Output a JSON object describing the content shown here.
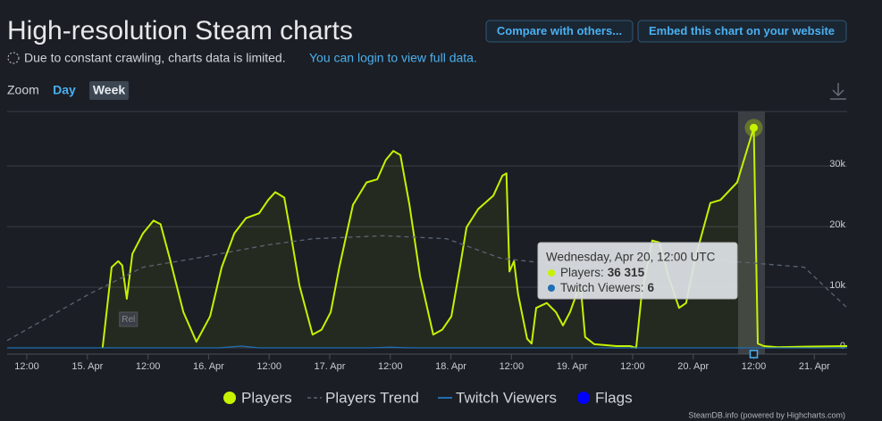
{
  "header": {
    "title": "High-resolution Steam charts",
    "note": "Due to constant crawling, charts data is limited.",
    "login_link": "You can login to view full data.",
    "buttons": [
      "Compare with others...",
      "Embed this chart on your website"
    ],
    "zoom": {
      "label": "Zoom",
      "options": [
        "Day",
        "Week"
      ],
      "active": "Week"
    }
  },
  "chart_data": {
    "type": "line",
    "xlim": [
      8.1,
      174.5
    ],
    "xticks": [
      {
        "value": 12,
        "label": "12:00"
      },
      {
        "value": 24,
        "label": "15. Apr"
      },
      {
        "value": 36,
        "label": "12:00"
      },
      {
        "value": 48,
        "label": "16. Apr"
      },
      {
        "value": 60,
        "label": "12:00"
      },
      {
        "value": 72,
        "label": "17. Apr"
      },
      {
        "value": 84,
        "label": "12:00"
      },
      {
        "value": 96,
        "label": "18. Apr"
      },
      {
        "value": 108,
        "label": "12:00"
      },
      {
        "value": 120,
        "label": "19. Apr"
      },
      {
        "value": 132,
        "label": "12:00"
      },
      {
        "value": 144,
        "label": "20. Apr"
      },
      {
        "value": 156,
        "label": "12:00"
      },
      {
        "value": 168,
        "label": "21. Apr"
      }
    ],
    "ylim": [
      0,
      39000
    ],
    "yticks": [
      0,
      {
        "value": 10000,
        "label": "10k"
      },
      {
        "value": 20000,
        "label": "20k"
      },
      {
        "value": 30000,
        "label": "30k"
      }
    ],
    "grid": true,
    "series": [
      {
        "name": "Players",
        "color": "#c6f200",
        "style": "solid",
        "x": [
          27.0,
          28.8,
          30.1,
          30.9,
          31.8,
          32.9,
          35.0,
          37.1,
          38.5,
          40.3,
          43.0,
          45.6,
          48.3,
          50.6,
          53.1,
          55.4,
          58.0,
          59.8,
          61.2,
          63.0,
          64.2,
          66.0,
          68.6,
          70.4,
          72.2,
          73.9,
          76.6,
          79.3,
          81.4,
          83.1,
          84.6,
          86.0,
          87.8,
          89.9,
          92.5,
          94.3,
          96.1,
          97.8,
          99.1,
          101.4,
          104.4,
          106.2,
          107.0,
          107.6,
          108.5,
          109.3,
          111.1,
          112.0,
          112.9,
          115.0,
          116.8,
          118.2,
          119.6,
          120.9,
          121.7,
          122.6,
          124.4,
          128.8,
          131.5,
          132.7,
          133.8,
          135.9,
          137.3,
          139.1,
          141.2,
          142.6,
          144.4,
          147.4,
          149.4,
          151.0,
          152.7,
          156.0,
          156.8,
          158.0,
          160.7,
          166.0,
          174.5
        ],
        "values": [
          0,
          13300,
          14300,
          13600,
          8100,
          15500,
          18900,
          21000,
          20400,
          14800,
          5900,
          1000,
          5200,
          13300,
          18900,
          21400,
          22200,
          24400,
          25700,
          24800,
          19200,
          10300,
          2200,
          3000,
          5900,
          13300,
          23600,
          27300,
          27800,
          31000,
          32500,
          31800,
          23600,
          11800,
          2200,
          3000,
          5200,
          13300,
          19900,
          22900,
          25100,
          28400,
          28800,
          12600,
          14300,
          8900,
          1500,
          700,
          6600,
          7400,
          5900,
          3700,
          5900,
          8900,
          10300,
          1800,
          600,
          300,
          300,
          0,
          8900,
          17700,
          17400,
          11800,
          6600,
          7400,
          14800,
          23900,
          24400,
          25800,
          27300,
          36315,
          700,
          300,
          100,
          200,
          300
        ]
      },
      {
        "name": "Players Trend",
        "color": "#5a6473",
        "style": "dashed",
        "x": [
          8.1,
          24.4,
          35.0,
          45.6,
          59.8,
          68.6,
          82.8,
          95.2,
          105.8,
          121.7,
          139.4,
          166.0,
          174.5
        ],
        "values": [
          1200,
          8900,
          13300,
          14800,
          17000,
          18000,
          18500,
          18000,
          14800,
          13300,
          15100,
          13300,
          6600
        ]
      },
      {
        "name": "Twitch Viewers",
        "color": "#1f6fb5",
        "style": "solid",
        "x": [
          8.1,
          50.0,
          54.5,
          58.0,
          80.0,
          84.0,
          88.0,
          156.0,
          174.5
        ],
        "values": [
          0,
          0,
          300,
          0,
          0,
          100,
          0,
          6,
          0
        ]
      },
      {
        "name": "Flags",
        "color": "#0000ff",
        "style": "flag",
        "x": [
          31.6
        ],
        "labels": [
          "Rel"
        ]
      }
    ],
    "tooltip": {
      "title": "Wednesday, Apr 20, 12:00 UTC",
      "rows": [
        {
          "name": "Players:",
          "value": 36315,
          "value_label": "36 315",
          "color": "#c6f200"
        },
        {
          "name": "Twitch Viewers:",
          "value": 6,
          "color": "#1f6fb5"
        }
      ]
    },
    "credit": "SteamDB.info (powered by Highcharts.com)"
  }
}
